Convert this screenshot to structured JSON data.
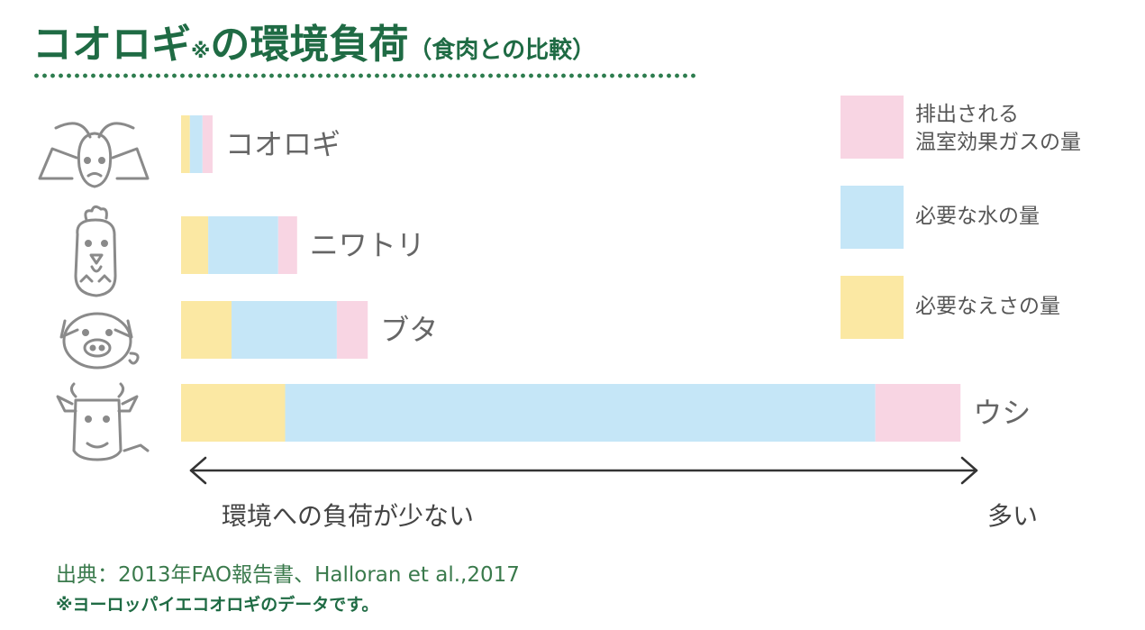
{
  "title": {
    "main": "コオロギ",
    "note_mark": "※",
    "rest": "の環境負荷",
    "paren": "（食肉との比較）"
  },
  "legend": {
    "items": [
      {
        "label": "排出される\n温室効果ガスの量",
        "color": "#f8d5e3"
      },
      {
        "label": "必要な水の量",
        "color": "#c5e6f7"
      },
      {
        "label": "必要なえさの量",
        "color": "#fbe8a3"
      }
    ]
  },
  "axis": {
    "low_label": "環境への負荷が少ない",
    "high_label": "多い"
  },
  "source": "出典：2013年FAO報告書、Halloran et al.,2017",
  "footnote": "※ヨーロッパイエコオロギのデータです。",
  "chart_data": {
    "type": "bar",
    "orientation": "horizontal",
    "stacked": true,
    "categories": [
      "コオロギ",
      "ニワトリ",
      "ブタ",
      "ウシ"
    ],
    "series": [
      {
        "name": "必要なえさの量",
        "color": "#fbe8a3",
        "values": [
          1.4,
          4.3,
          8.0,
          16.5
        ]
      },
      {
        "name": "必要な水の量",
        "color": "#c5e6f7",
        "values": [
          2.0,
          11.1,
          16.7,
          93.6
        ]
      },
      {
        "name": "排出される温室効果ガスの量",
        "color": "#f8d5e3",
        "values": [
          1.6,
          3.0,
          4.9,
          13.5
        ]
      }
    ],
    "icons": [
      "cricket-icon",
      "chicken-icon",
      "pig-icon",
      "cow-icon"
    ],
    "axis_values_shown": false,
    "grid": false,
    "legend_position": "right"
  }
}
